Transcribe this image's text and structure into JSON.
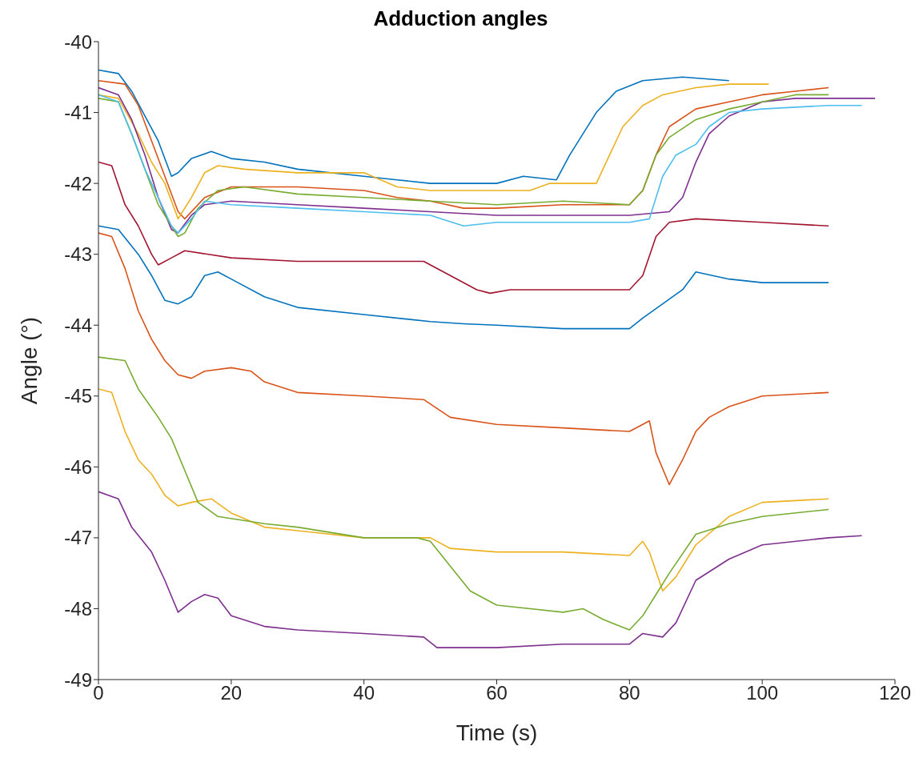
{
  "chart_data": {
    "type": "line",
    "title": "Adduction angles",
    "xlabel": "Time (s)",
    "ylabel": "Angle (°)",
    "xlim": [
      0,
      120
    ],
    "xticks": [
      0,
      20,
      40,
      60,
      80,
      100,
      120
    ],
    "ylim": [
      -49,
      -40
    ],
    "yticks": [
      -49,
      -48,
      -47,
      -46,
      -45,
      -44,
      -43,
      -42,
      -41,
      -40
    ],
    "grid": false,
    "marker": "none",
    "line_style": "solid",
    "series": [
      {
        "color": "#0072bd",
        "x": [
          0,
          3,
          5,
          7,
          9,
          11,
          12,
          14,
          17,
          20,
          25,
          30,
          40,
          45,
          50,
          55,
          60,
          64,
          69,
          71,
          73,
          75,
          78,
          82,
          88,
          95
        ],
        "values": [
          -40.4,
          -40.45,
          -40.7,
          -41.05,
          -41.4,
          -41.9,
          -41.85,
          -41.65,
          -41.55,
          -41.65,
          -41.7,
          -41.8,
          -41.9,
          -41.95,
          -42.0,
          -42.0,
          -42.0,
          -41.9,
          -41.95,
          -41.6,
          -41.3,
          -41.0,
          -40.7,
          -40.55,
          -40.5,
          -40.55
        ]
      },
      {
        "color": "#d95319",
        "x": [
          0,
          4,
          6,
          8,
          10,
          12,
          13,
          16,
          20,
          30,
          40,
          45,
          50,
          55,
          60,
          70,
          80,
          82,
          84,
          86,
          90,
          95,
          100,
          105,
          110
        ],
        "values": [
          -40.55,
          -40.6,
          -40.9,
          -41.4,
          -41.9,
          -42.4,
          -42.5,
          -42.2,
          -42.05,
          -42.05,
          -42.1,
          -42.2,
          -42.25,
          -42.35,
          -42.35,
          -42.3,
          -42.3,
          -42.1,
          -41.6,
          -41.2,
          -40.95,
          -40.85,
          -40.75,
          -40.7,
          -40.65
        ]
      },
      {
        "color": "#edb120",
        "x": [
          0,
          3,
          6,
          8,
          10,
          12,
          14,
          16,
          18,
          22,
          30,
          40,
          45,
          50,
          60,
          65,
          68,
          75,
          77,
          79,
          82,
          85,
          90,
          95,
          101
        ],
        "values": [
          -40.75,
          -40.8,
          -41.3,
          -41.7,
          -42.0,
          -42.5,
          -42.2,
          -41.85,
          -41.75,
          -41.8,
          -41.85,
          -41.85,
          -42.05,
          -42.1,
          -42.1,
          -42.1,
          -42.0,
          -42.0,
          -41.6,
          -41.2,
          -40.9,
          -40.75,
          -40.65,
          -40.6,
          -40.6
        ]
      },
      {
        "color": "#7e2f8e",
        "x": [
          0,
          3,
          5,
          7,
          9,
          11,
          12,
          14,
          16,
          20,
          30,
          40,
          50,
          60,
          70,
          80,
          86,
          88,
          90,
          92,
          95,
          100,
          105,
          110,
          117
        ],
        "values": [
          -40.65,
          -40.75,
          -41.1,
          -41.6,
          -42.2,
          -42.65,
          -42.7,
          -42.45,
          -42.3,
          -42.25,
          -42.3,
          -42.35,
          -42.4,
          -42.45,
          -42.45,
          -42.45,
          -42.4,
          -42.2,
          -41.7,
          -41.3,
          -41.05,
          -40.85,
          -40.8,
          -40.8,
          -40.8
        ]
      },
      {
        "color": "#77ac30",
        "x": [
          0,
          3,
          5,
          7,
          9,
          11,
          12,
          13,
          15,
          18,
          22,
          30,
          40,
          50,
          60,
          70,
          80,
          82,
          84,
          86,
          90,
          95,
          100,
          105,
          110
        ],
        "values": [
          -40.8,
          -40.85,
          -41.3,
          -41.8,
          -42.3,
          -42.6,
          -42.75,
          -42.7,
          -42.35,
          -42.1,
          -42.05,
          -42.15,
          -42.2,
          -42.25,
          -42.3,
          -42.25,
          -42.3,
          -42.1,
          -41.6,
          -41.35,
          -41.1,
          -40.95,
          -40.85,
          -40.75,
          -40.75
        ]
      },
      {
        "color": "#4dbeee",
        "x": [
          0,
          3,
          5,
          7,
          9,
          11,
          12,
          14,
          16,
          20,
          30,
          40,
          50,
          55,
          60,
          70,
          80,
          83,
          85,
          87,
          90,
          92,
          95,
          100,
          110,
          115
        ],
        "values": [
          -40.75,
          -40.85,
          -41.3,
          -41.8,
          -42.2,
          -42.6,
          -42.7,
          -42.5,
          -42.25,
          -42.3,
          -42.35,
          -42.4,
          -42.45,
          -42.6,
          -42.55,
          -42.55,
          -42.55,
          -42.5,
          -41.9,
          -41.6,
          -41.45,
          -41.2,
          -41.0,
          -40.95,
          -40.9,
          -40.9
        ]
      },
      {
        "color": "#a2142f",
        "x": [
          0,
          2,
          4,
          6,
          8,
          9,
          11,
          13,
          20,
          30,
          40,
          49,
          53,
          57,
          59,
          62,
          70,
          80,
          82,
          84,
          86,
          90,
          100,
          110
        ],
        "values": [
          -41.7,
          -41.75,
          -42.3,
          -42.6,
          -43.0,
          -43.15,
          -43.05,
          -42.95,
          -43.05,
          -43.1,
          -43.1,
          -43.1,
          -43.3,
          -43.5,
          -43.55,
          -43.5,
          -43.5,
          -43.5,
          -43.3,
          -42.75,
          -42.55,
          -42.5,
          -42.55,
          -42.6
        ]
      },
      {
        "color": "#0072bd",
        "x": [
          0,
          3,
          6,
          8,
          10,
          12,
          14,
          16,
          18,
          20,
          25,
          30,
          40,
          50,
          55,
          60,
          70,
          80,
          82,
          85,
          88,
          90,
          95,
          100,
          110
        ],
        "values": [
          -42.6,
          -42.65,
          -43.0,
          -43.3,
          -43.65,
          -43.7,
          -43.6,
          -43.3,
          -43.25,
          -43.35,
          -43.6,
          -43.75,
          -43.85,
          -43.95,
          -43.98,
          -44.0,
          -44.05,
          -44.05,
          -43.9,
          -43.7,
          -43.5,
          -43.25,
          -43.35,
          -43.4,
          -43.4
        ]
      },
      {
        "color": "#d95319",
        "x": [
          0,
          2,
          4,
          6,
          8,
          10,
          12,
          14,
          16,
          20,
          23,
          25,
          30,
          40,
          49,
          53,
          60,
          70,
          80,
          82,
          83,
          84,
          86,
          88,
          90,
          92,
          95,
          100,
          110
        ],
        "values": [
          -42.7,
          -42.75,
          -43.2,
          -43.8,
          -44.2,
          -44.5,
          -44.7,
          -44.75,
          -44.65,
          -44.6,
          -44.65,
          -44.8,
          -44.95,
          -45.0,
          -45.05,
          -45.3,
          -45.4,
          -45.45,
          -45.5,
          -45.4,
          -45.35,
          -45.8,
          -46.25,
          -45.9,
          -45.5,
          -45.3,
          -45.15,
          -45.0,
          -44.95
        ]
      },
      {
        "color": "#edb120",
        "x": [
          0,
          2,
          4,
          6,
          8,
          10,
          12,
          14,
          17,
          20,
          25,
          30,
          40,
          50,
          53,
          60,
          70,
          80,
          82,
          83,
          85,
          87,
          90,
          95,
          100,
          110
        ],
        "values": [
          -44.9,
          -44.95,
          -45.5,
          -45.9,
          -46.1,
          -46.4,
          -46.55,
          -46.5,
          -46.45,
          -46.65,
          -46.85,
          -46.9,
          -47.0,
          -47.0,
          -47.15,
          -47.2,
          -47.2,
          -47.25,
          -47.05,
          -47.2,
          -47.75,
          -47.55,
          -47.1,
          -46.7,
          -46.5,
          -46.45
        ]
      },
      {
        "color": "#77ac30",
        "x": [
          0,
          4,
          6,
          9,
          11,
          13,
          15,
          18,
          25,
          30,
          40,
          48,
          50,
          53,
          56,
          60,
          70,
          73,
          76,
          80,
          82,
          84,
          86,
          90,
          95,
          100,
          110
        ],
        "values": [
          -44.45,
          -44.5,
          -44.9,
          -45.3,
          -45.6,
          -46.05,
          -46.5,
          -46.7,
          -46.8,
          -46.85,
          -47.0,
          -47.0,
          -47.05,
          -47.4,
          -47.75,
          -47.95,
          -48.05,
          -48.0,
          -48.15,
          -48.3,
          -48.1,
          -47.8,
          -47.5,
          -46.95,
          -46.8,
          -46.7,
          -46.6
        ]
      },
      {
        "color": "#7e2f8e",
        "x": [
          0,
          3,
          5,
          8,
          10,
          12,
          14,
          16,
          18,
          20,
          25,
          30,
          40,
          49,
          51,
          60,
          70,
          80,
          82,
          85,
          87,
          90,
          95,
          100,
          110,
          115
        ],
        "values": [
          -46.35,
          -46.45,
          -46.85,
          -47.2,
          -47.6,
          -48.05,
          -47.9,
          -47.8,
          -47.85,
          -48.1,
          -48.25,
          -48.3,
          -48.35,
          -48.4,
          -48.55,
          -48.55,
          -48.5,
          -48.5,
          -48.35,
          -48.4,
          -48.2,
          -47.6,
          -47.3,
          -47.1,
          -47.0,
          -46.97
        ]
      }
    ]
  }
}
